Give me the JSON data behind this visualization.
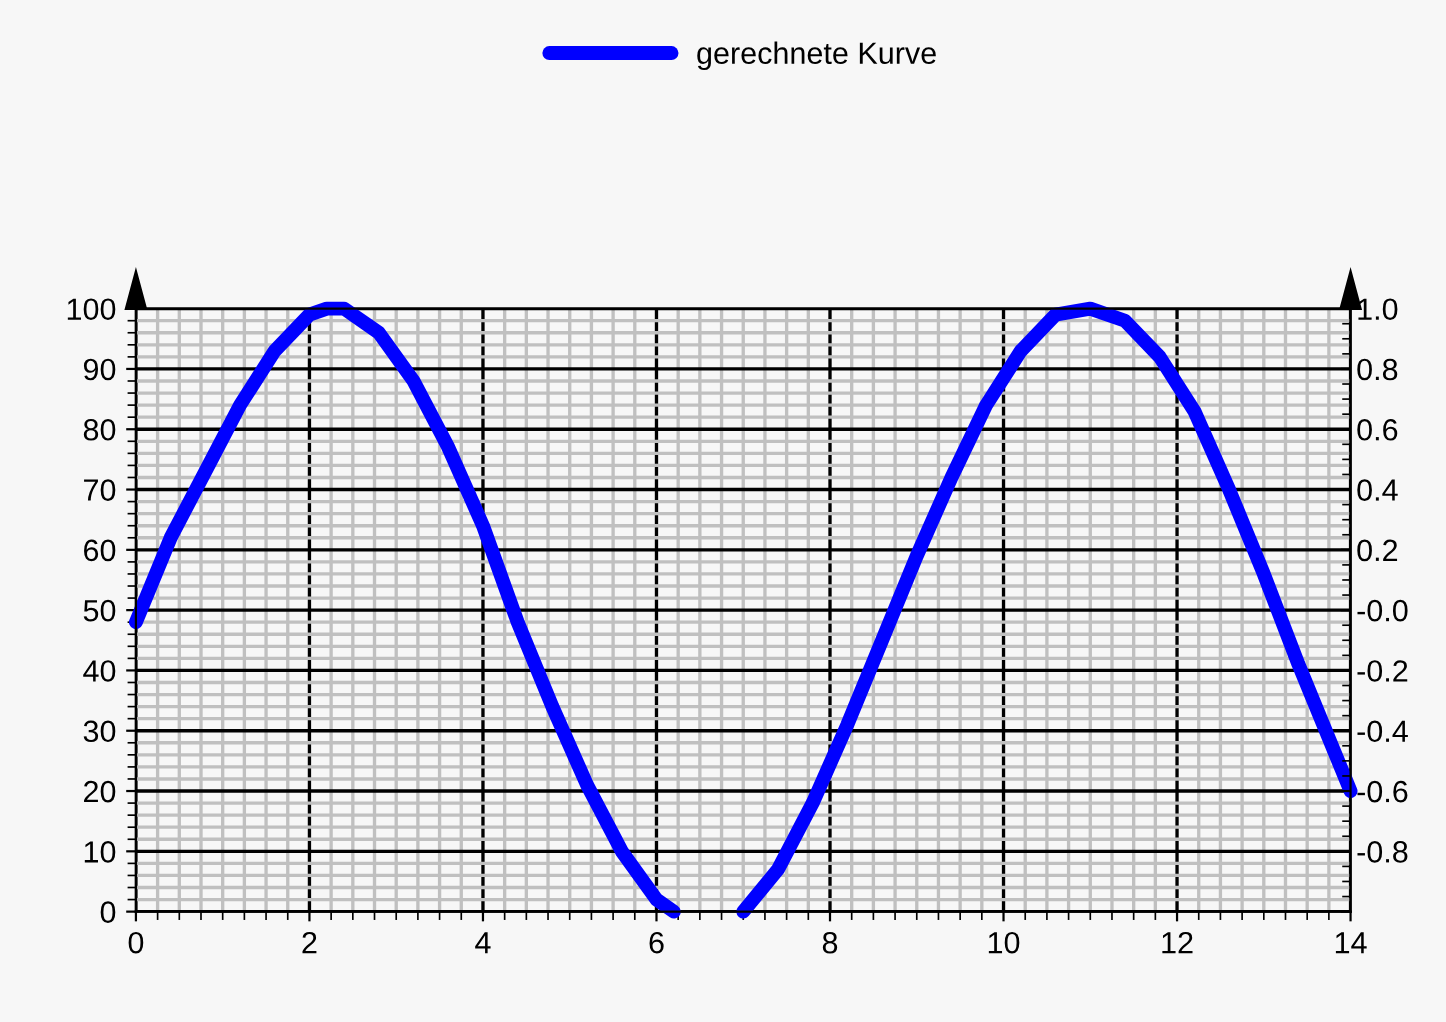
{
  "chart_data": {
    "type": "line",
    "series": [
      {
        "name": "gerechnete Kurve",
        "color": "#0000ff",
        "x": [
          0,
          0.4,
          0.8,
          1.2,
          1.6,
          2.0,
          2.2,
          2.4,
          2.8,
          3.2,
          3.6,
          4.0,
          4.4,
          4.8,
          5.2,
          5.6,
          6.0,
          6.2,
          6.6,
          7.0,
          7.4,
          7.8,
          8.2,
          8.6,
          9.0,
          9.4,
          9.8,
          10.2,
          10.6,
          11.0,
          11.4,
          11.8,
          12.2,
          12.6,
          13.0,
          13.4,
          13.8,
          14.0
        ],
        "values": [
          48,
          62,
          73,
          84,
          93,
          99,
          100,
          100,
          96,
          88,
          77,
          64,
          48,
          34,
          21,
          10,
          2,
          0,
          null,
          0,
          7,
          18,
          31,
          45,
          59,
          72,
          84,
          93,
          99,
          100,
          98,
          92,
          83,
          70,
          56,
          41,
          27,
          20
        ]
      }
    ],
    "xlim": [
      0,
      14
    ],
    "xticks": [
      0,
      2,
      4,
      6,
      8,
      10,
      12,
      14
    ],
    "ylim": [
      0,
      100
    ],
    "yticks": [
      0,
      10,
      20,
      30,
      40,
      50,
      60,
      70,
      80,
      90,
      100
    ],
    "y2lim": [
      -1,
      1
    ],
    "y2ticks": [
      {
        "value": -1,
        "label": null
      },
      "-0.8",
      "-0.6",
      "-0.4",
      "-0.2",
      {
        "value": 0,
        "label": "-0.0"
      },
      0.2,
      0.4,
      0.6,
      0.8,
      {
        "value": 1,
        "label": "1.0"
      }
    ],
    "grid": true,
    "legend": "top",
    "line_style": "solid",
    "marker": "none"
  }
}
